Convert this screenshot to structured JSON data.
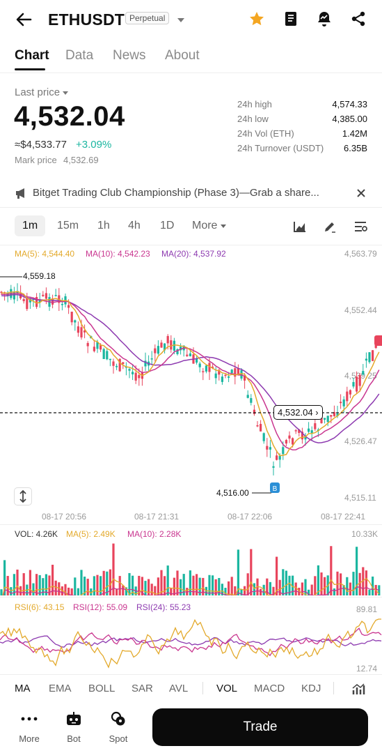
{
  "header": {
    "symbol": "ETHUSDT",
    "badge": "Perpetual",
    "icons": [
      "back-arrow-icon",
      "star-icon",
      "book-icon",
      "alert-icon",
      "share-icon"
    ]
  },
  "tabs": [
    "Chart",
    "Data",
    "News",
    "About"
  ],
  "price": {
    "last_label": "Last price",
    "last": "4,532.04",
    "usd": "≈$4,533.77",
    "change": "+3.09%",
    "mark_label": "Mark price",
    "mark": "4,532.69",
    "stats": [
      {
        "label": "24h high",
        "value": "4,574.33"
      },
      {
        "label": "24h low",
        "value": "4,385.00"
      },
      {
        "label": "24h Vol (ETH)",
        "value": "1.42M"
      },
      {
        "label": "24h Turnover (USDT)",
        "value": "6.35B"
      }
    ]
  },
  "announcement": "Bitget Trading Club Championship (Phase 3)—Grab a share...",
  "timeframes": {
    "items": [
      "1m",
      "15m",
      "1h",
      "4h",
      "1D"
    ],
    "more": "More"
  },
  "ma_legend": {
    "ma5": "MA(5): 4,544.40",
    "ma10": "MA(10): 4,542.23",
    "ma20": "MA(20): 4,537.92"
  },
  "y_axis": [
    "4,563.79",
    "4,552.44",
    "4,539.25",
    "4,526.47",
    "4,515.11"
  ],
  "high_marker": "4,559.18",
  "low_marker": "4,516.00",
  "current_price_tag": "4,532.04",
  "x_axis": [
    "08-17 20:56",
    "08-17 21:31",
    "08-17 22:06",
    "08-17 22:41"
  ],
  "volume": {
    "vol": "VOL: 4.26K",
    "ma5": "MA(5): 2.49K",
    "ma10": "MA(10): 2.28K",
    "max": "10.33K"
  },
  "rsi": {
    "rsi6": "RSI(6): 43.15",
    "rsi12": "RSI(12): 55.09",
    "rsi24": "RSI(24): 55.23",
    "max": "89.81",
    "min": "12.74"
  },
  "indicators": [
    "MA",
    "EMA",
    "BOLL",
    "SAR",
    "AVL",
    "VOL",
    "MACD",
    "KDJ"
  ],
  "bottom_nav": {
    "more": "More",
    "bot": "Bot",
    "spot": "Spot",
    "trade": "Trade"
  },
  "colors": {
    "up": "#1bb6a0",
    "down": "#e8445c",
    "ma5": "#e3a92b",
    "ma10": "#c9358f",
    "ma20": "#8d3ab0",
    "star": "#f4a622"
  }
}
